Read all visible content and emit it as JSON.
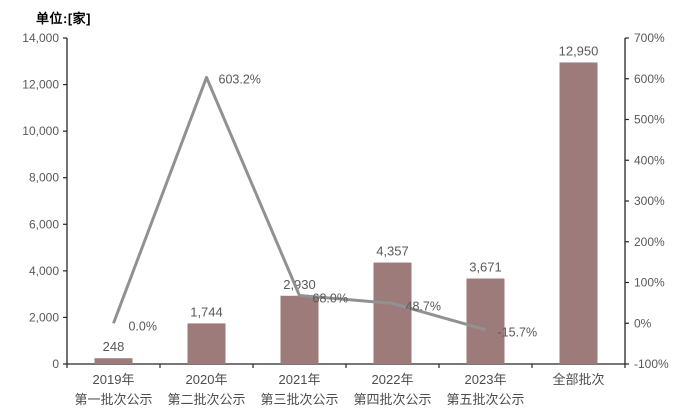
{
  "chart_data": {
    "type": "bar",
    "title": "单位:[家]",
    "categories": [
      {
        "year": "2019年",
        "batch": "第一批次公示"
      },
      {
        "year": "2020年",
        "batch": "第二批次公示"
      },
      {
        "year": "2021年",
        "batch": "第三批次公示"
      },
      {
        "year": "2022年",
        "batch": "第四批次公示"
      },
      {
        "year": "2023年",
        "batch": "第五批次公示"
      },
      {
        "year": "全部批次",
        "batch": ""
      }
    ],
    "bars": {
      "values": [
        248,
        1744,
        2930,
        4357,
        3671,
        12950
      ],
      "labels": [
        "248",
        "1,744",
        "2,930",
        "4,357",
        "3,671",
        "12,950"
      ],
      "color": "#9e7b7b"
    },
    "line": {
      "values": [
        0.0,
        603.2,
        68.0,
        48.7,
        -15.7,
        null
      ],
      "labels": [
        "0.0%",
        "603.2%",
        "68.0%",
        "48.7%",
        "-15.7%"
      ],
      "color": "#919191"
    },
    "left_axis": {
      "min": 0,
      "max": 14000,
      "tick_labels": [
        "0",
        "2,000",
        "4,000",
        "6,000",
        "8,000",
        "10,000",
        "12,000",
        "14,000"
      ]
    },
    "right_axis": {
      "min": -100,
      "max": 700,
      "tick_labels": [
        "-100%",
        "0%",
        "100%",
        "200%",
        "300%",
        "400%",
        "500%",
        "600%",
        "700%"
      ]
    },
    "legend": "none",
    "grid": "off",
    "axis_color": "#262626",
    "background": "#ffffff"
  }
}
